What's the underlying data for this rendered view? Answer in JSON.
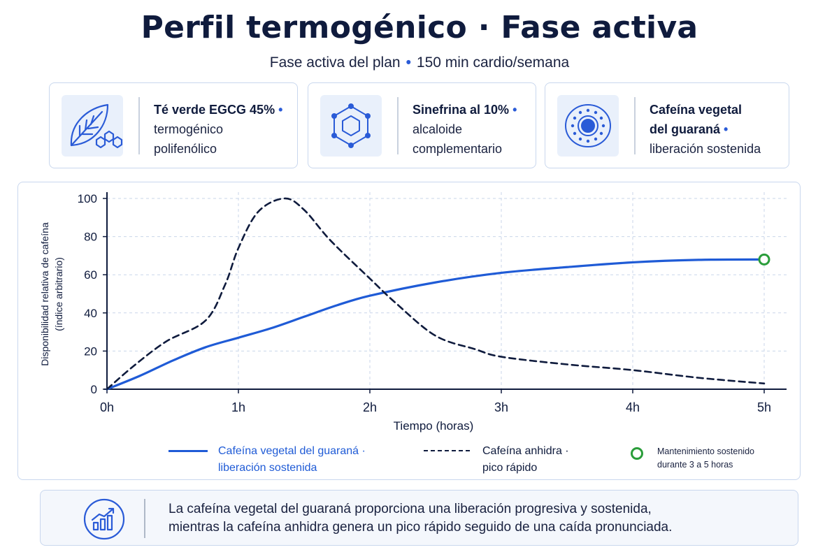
{
  "header": {
    "title": "Perfil termogénico · Fase activa",
    "subtitle_a": "Fase activa del plan",
    "subtitle_sep": "•",
    "subtitle_b": "150 min cardio/semana"
  },
  "cards": [
    {
      "icon": "leaf-molecule-icon",
      "strong": "Té verde EGCG 45%",
      "line2": "termogénico",
      "line3": "polifenólico"
    },
    {
      "icon": "hexagon-molecule-icon",
      "strong": "Sinefrina al 10%",
      "line2": "alcaloide",
      "line3": "complementario"
    },
    {
      "icon": "guarana-seed-icon",
      "strong": "Cafeína vegetal",
      "strong2": "del guaraná",
      "line3": "liberación sostenida"
    }
  ],
  "colors": {
    "accent": "#2a5bd7",
    "sustained_line": "#1f5bd6",
    "rapid_line": "#0f1b3d",
    "marker": "#2a9d3a",
    "title": "#0f1b3d"
  },
  "chart_data": {
    "type": "line",
    "xlabel": "Tiempo (horas)",
    "ylabel_line1": "Disponibilidad relativa de cafeína",
    "ylabel_line2": "(índice arbitrario)",
    "x_tick_labels": [
      "0h",
      "1h",
      "2h",
      "3h",
      "4h",
      "5h"
    ],
    "y_ticks": [
      0,
      20,
      40,
      60,
      80,
      100
    ],
    "xlim": [
      0,
      5
    ],
    "ylim": [
      0,
      100
    ],
    "grid": true,
    "series": [
      {
        "name_line1": "Cafeína vegetal del guaraná ·",
        "name_line2": "liberación sostenida",
        "style": "solid",
        "x": [
          0,
          0.25,
          0.5,
          0.75,
          1.0,
          1.25,
          1.5,
          1.75,
          2.0,
          2.5,
          3.0,
          3.5,
          4.0,
          4.5,
          5.0
        ],
        "y": [
          0,
          7,
          15,
          22,
          27,
          32,
          38,
          44,
          49,
          56,
          61,
          64,
          66.5,
          67.8,
          68
        ]
      },
      {
        "name_line1": "Cafeína anhidra ·",
        "name_line2": "pico rápido",
        "style": "dashed",
        "x": [
          0,
          0.2,
          0.45,
          0.75,
          0.9,
          1.0,
          1.15,
          1.35,
          1.5,
          1.7,
          2.0,
          2.2,
          2.5,
          2.8,
          3.0,
          3.5,
          4.0,
          4.5,
          5.0
        ],
        "y": [
          0,
          12,
          25,
          36,
          55,
          74,
          93,
          100,
          94,
          78,
          58,
          45,
          28,
          21,
          17,
          13,
          10,
          6,
          3
        ]
      }
    ],
    "marker": {
      "x": 5.0,
      "y": 68,
      "label_line1": "Mantenimiento sostenido",
      "label_line2": "durante 3 a 5 horas"
    }
  },
  "footer": {
    "icon": "growth-chart-icon",
    "line1": "La cafeína vegetal del guaraná proporciona una liberación progresiva y sostenida,",
    "line2": "mientras la cafeína anhidra genera un pico rápido seguido de una caída pronunciada."
  }
}
